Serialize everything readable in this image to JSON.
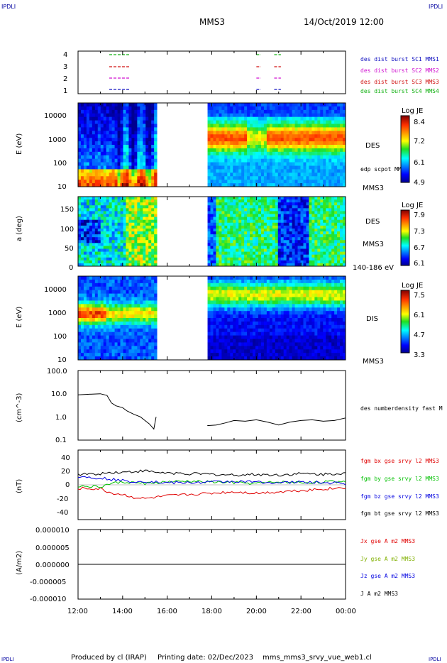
{
  "header": {
    "logo_left": "IPDLI",
    "logo_right": "IPDLI",
    "mission": "MMS3",
    "datetime": "14/Oct/2019 12:00"
  },
  "footer": {
    "produced_by": "Produced by cl (IRAP)",
    "printing_date": "Printing date: 02/Dec/2023",
    "product": "mms_mms3_srvy_vue_web1.cl",
    "logo_left": "IPDLI",
    "logo_right": "IPDLI"
  },
  "time_axis": {
    "ticks": [
      "12:00",
      "14:00",
      "16:00",
      "18:00",
      "20:00",
      "22:00",
      "00:00"
    ],
    "start_hour": 12,
    "end_hour": 24
  },
  "colors": {
    "sc1": "#1010c0",
    "sc2": "#d010d0",
    "sc3": "#d01010",
    "sc4": "#10b010",
    "bx": "#e00000",
    "by": "#00c000",
    "bz": "#0000e0",
    "bt": "#000000"
  },
  "chart_data": [
    {
      "panel": "burst",
      "type": "scatter",
      "yticks": [
        "4",
        "3",
        "2",
        "1"
      ],
      "legend": [
        "des dist burst SC1 MMS1",
        "des dist burst SC2 MMS2",
        "des dist burst SC3 MMS3",
        "des dist burst SC4 MMS4"
      ],
      "intervals_hours": [
        [
          13.4,
          14.3
        ],
        [
          20.0,
          20.2
        ],
        [
          20.8,
          21.1
        ]
      ]
    },
    {
      "panel": "des_energy",
      "type": "heatmap",
      "ylabel": "E (eV)",
      "yticks": [
        "10000",
        "1000",
        "100",
        "10"
      ],
      "label": "DES",
      "sublabel": "MMS3",
      "overlay_label": "edp scpot MMS3",
      "colorbar_title": "Log JE",
      "colorbar_ticks": [
        "8.4",
        "7.2",
        "6.1",
        "4.9"
      ],
      "data_gap_hours": [
        15.5,
        17.8
      ]
    },
    {
      "panel": "des_pitch",
      "type": "heatmap",
      "ylabel": "a (deg)",
      "yticks": [
        "150",
        "100",
        "50",
        "0"
      ],
      "label": "DES",
      "sublabel": "MMS3",
      "energy_range": "140-186 eV",
      "colorbar_title": "Log JE",
      "colorbar_ticks": [
        "7.9",
        "7.3",
        "6.7",
        "6.1"
      ],
      "data_gap_hours": [
        15.5,
        17.8
      ]
    },
    {
      "panel": "dis_energy",
      "type": "heatmap",
      "ylabel": "E (eV)",
      "yticks": [
        "10000",
        "1000",
        "100",
        "10"
      ],
      "label": "DIS",
      "sublabel": "MMS3",
      "colorbar_title": "Log JE",
      "colorbar_ticks": [
        "7.5",
        "6.1",
        "4.7",
        "3.3"
      ],
      "data_gap_hours": [
        15.5,
        17.8
      ]
    },
    {
      "panel": "density",
      "type": "line",
      "ylabel": "(cm^-3)",
      "yticks": [
        "100.0",
        "10.0",
        "1.0",
        "0.1"
      ],
      "ylim": [
        0.1,
        100
      ],
      "yscale": "log",
      "legend": [
        "des numberdensity fast M"
      ],
      "x": [
        12.0,
        12.5,
        13.0,
        13.3,
        13.5,
        13.7,
        14.0,
        14.2,
        14.5,
        14.8,
        15.0,
        15.2,
        15.4,
        15.5,
        17.8,
        18.2,
        18.6,
        19.0,
        19.5,
        20.0,
        20.5,
        21.0,
        21.5,
        22.0,
        22.5,
        23.0,
        23.5,
        24.0
      ],
      "y": [
        9.0,
        9.5,
        10.0,
        8.5,
        4.0,
        3.0,
        2.5,
        1.8,
        1.3,
        1.0,
        0.7,
        0.5,
        0.3,
        1.0,
        0.42,
        0.45,
        0.55,
        0.7,
        0.65,
        0.75,
        0.6,
        0.45,
        0.6,
        0.7,
        0.75,
        0.65,
        0.7,
        0.9
      ]
    },
    {
      "panel": "field",
      "type": "line",
      "ylabel": "(nT)",
      "yticks": [
        "40",
        "20",
        "0",
        "-20",
        "-40"
      ],
      "ylim": [
        -50,
        50
      ],
      "legend": [
        "fgm bx gse srvy l2 MMS3",
        "fgm by gse srvy l2 MMS3",
        "fgm bz gse srvy l2 MMS3",
        "fgm bt gse srvy l2 MMS3"
      ],
      "x": [
        12.0,
        13.0,
        13.5,
        14.0,
        14.5,
        15.0,
        15.5,
        16.0,
        17.0,
        18.0,
        19.0,
        20.0,
        21.0,
        22.0,
        23.0,
        24.0
      ],
      "series": [
        {
          "name": "fgm bx gse srvy l2 MMS3",
          "values": [
            -5,
            -6,
            -12,
            -14,
            -18,
            -20,
            -18,
            -16,
            -14,
            -12,
            -10,
            -12,
            -10,
            -8,
            -6,
            -4
          ]
        },
        {
          "name": "fgm by gse srvy l2 MMS3",
          "values": [
            -2,
            -3,
            2,
            4,
            3,
            2,
            3,
            4,
            5,
            4,
            3,
            2,
            4,
            3,
            4,
            5
          ]
        },
        {
          "name": "fgm bz gse srvy l2 MMS3",
          "values": [
            12,
            10,
            8,
            6,
            5,
            5,
            4,
            3,
            3,
            4,
            5,
            4,
            3,
            4,
            3,
            2
          ]
        },
        {
          "name": "fgm bt gse srvy l2 MMS3",
          "values": [
            15,
            16,
            18,
            18,
            19,
            20,
            18,
            17,
            16,
            15,
            14,
            15,
            14,
            16,
            15,
            17
          ]
        }
      ]
    },
    {
      "panel": "current",
      "type": "line",
      "ylabel": "(A/m2)",
      "yticks": [
        "0.000010",
        "0.000005",
        "0.000000",
        "-0.000005",
        "-0.000010"
      ],
      "ylim": [
        -1e-05,
        1e-05
      ],
      "legend": [
        "Jx gse A m2 MMS3",
        "Jy gse A m2 MMS3",
        "Jz gse A m2 MMS3",
        "J A m2 MMS3"
      ],
      "x": [
        12.0,
        24.0
      ],
      "series": [
        {
          "name": "J A m2 MMS3",
          "values": [
            0,
            0
          ]
        }
      ]
    }
  ]
}
